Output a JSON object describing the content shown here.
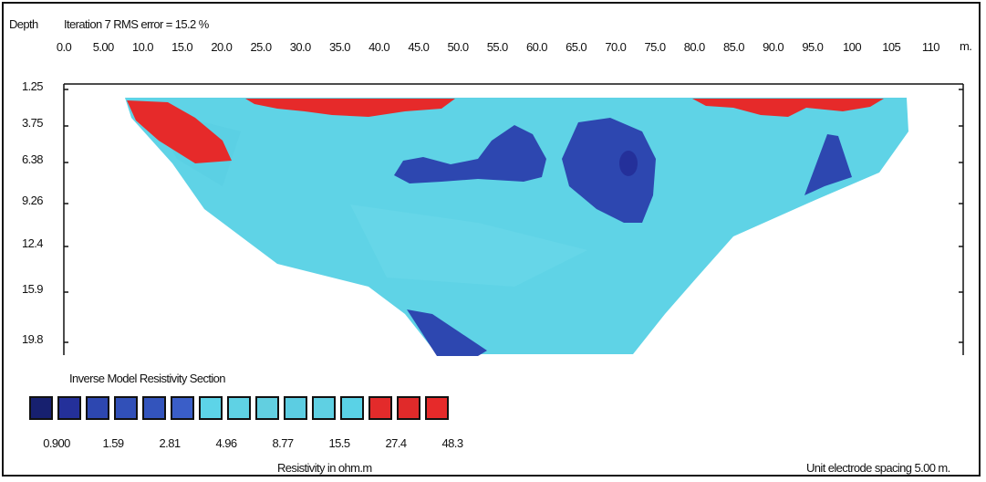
{
  "chart_data": {
    "type": "heatmap",
    "title": "Inverse Model Resistivity Section",
    "header_depth_label": "Depth",
    "header_iteration_text": "Iteration 7 RMS error = 15.2 %",
    "x_unit": "m.",
    "x_ticks": [
      "0.0",
      "5.00",
      "10.0",
      "15.0",
      "20.0",
      "25.0",
      "30.0",
      "35.0",
      "40.0",
      "45.0",
      "50.0",
      "55.0",
      "60.0",
      "65.0",
      "70.0",
      "75.0",
      "80.0",
      "85.0",
      "90.0",
      "95.0",
      "100",
      "105",
      "110"
    ],
    "y_ticks": [
      "1.25",
      "3.75",
      "6.38",
      "9.26",
      "12.4",
      "15.9",
      "19.8"
    ],
    "legend_colors": [
      "#17206f",
      "#24309a",
      "#2d47b0",
      "#3150b8",
      "#3354bc",
      "#3a5ec8",
      "#5dd4e8",
      "#5fd2e4",
      "#62cfe0",
      "#5ccde2",
      "#5fd0e3",
      "#5ad2e6",
      "#e32b2b",
      "#e02a2a",
      "#e62a2a"
    ],
    "legend_values": [
      "0.900",
      "1.59",
      "2.81",
      "4.96",
      "8.77",
      "15.5",
      "27.4",
      "48.3"
    ],
    "legend_value_positions": [
      0,
      2,
      4,
      6,
      8,
      10,
      12,
      14
    ],
    "colorbar_label": "Resistivity in ohm.m",
    "footer_right": "Unit electrode spacing 5.00 m.",
    "background_color": "#5fd3e6",
    "anomalies": [
      {
        "name": "high-resistivity-left",
        "class": "48.3",
        "color": "#e62a2a"
      },
      {
        "name": "high-resistivity-top-center",
        "class": "48.3",
        "color": "#e62a2a"
      },
      {
        "name": "high-resistivity-top-right",
        "class": "48.3",
        "color": "#e62a2a"
      },
      {
        "name": "low-resistivity-center-left",
        "class": "1.59",
        "color": "#2d47b0"
      },
      {
        "name": "low-resistivity-center",
        "class": "1.59",
        "color": "#2d47b0"
      },
      {
        "name": "low-resistivity-right",
        "class": "1.59",
        "color": "#2d47b0"
      },
      {
        "name": "low-resistivity-bottom",
        "class": "1.59",
        "color": "#2d47b0"
      }
    ]
  }
}
